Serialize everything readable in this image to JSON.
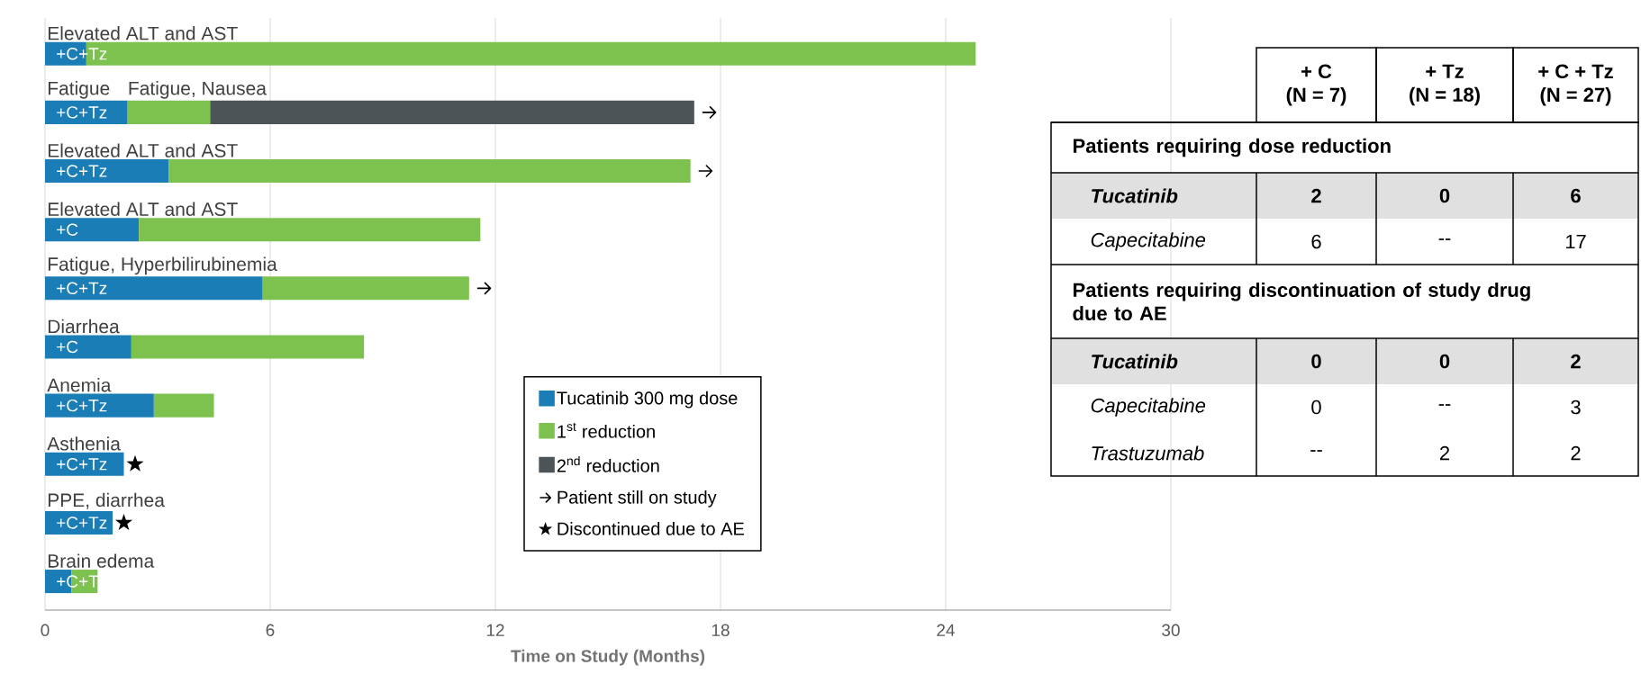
{
  "chart_data": [
    {
      "type": "bar",
      "orientation": "horizontal",
      "stacked": true,
      "categories": [
        "Elevated ALT and AST",
        "Fatigue",
        "Elevated ALT and AST",
        "Elevated ALT and AST",
        "Fatigue, Hyperbilirubinemia",
        "Diarrhea",
        "Anemia",
        "Asthenia",
        "PPE, diarrhea",
        "Brain edema"
      ],
      "series": [
        {
          "name": "Tucatinib 300 mg dose",
          "color": "#1a7db6",
          "values": [
            1.1,
            2.2,
            3.3,
            2.5,
            5.8,
            2.3,
            2.9,
            2.1,
            1.8,
            0.7
          ],
          "value_labels": [
            "+C+Tz",
            "+C+Tz",
            "+C+Tz",
            "+C",
            "+C+Tz",
            "+C",
            "+C+Tz",
            "+C+Tz",
            "+C+Tz",
            "+C+T"
          ]
        },
        {
          "name": "1$^{st}$ reduction",
          "color": "#7dc24f",
          "values": [
            23.7,
            2.2,
            13.9,
            9.1,
            5.5,
            6.2,
            1.6,
            null,
            null,
            0.7
          ],
          "value_labels": [
            null,
            "Fatigue, Nausea",
            null,
            null,
            null,
            null,
            null,
            null,
            null,
            null
          ]
        },
        {
          "name": "2$^{nd}$ reduction",
          "color": "#4d5457",
          "values": [
            null,
            12.9,
            null,
            null,
            null,
            null,
            null,
            null,
            null,
            null
          ]
        },
        {
          "name": "Patient still on study",
          "type": "scatter",
          "color": "#000000",
          "values": [
            null,
            17.7,
            17.6,
            null,
            11.7,
            null,
            null,
            null,
            null,
            null
          ]
        },
        {
          "name": "Discontinued due to AE",
          "type": "scatter",
          "marker": "star",
          "color": "#000000",
          "values": [
            null,
            null,
            null,
            null,
            null,
            null,
            null,
            2.4,
            2.1,
            null
          ]
        }
      ],
      "xlabel": "Time on Study (Months)",
      "xlim": [
        0,
        30
      ],
      "xticks": [
        0,
        6,
        12,
        18,
        24,
        30
      ],
      "grid": "x",
      "legend": "bottom",
      "tick_labels": "x"
    },
    {
      "type": "other",
      "categories": [
        "+ C",
        "+ Tz",
        "+ C + Tz"
      ],
      "y_categories": [
        null,
        "Patients requiring dose reduction",
        "Tucatinib",
        "Capecitabine",
        "Patients requiring discontinuation of study drug due to AE",
        "Tucatinib",
        "Capecitabine",
        "Trastuzumab"
      ],
      "cell_labels": [
        [
          "(N = 7)",
          "(N = 18)",
          "(N = 27)"
        ],
        [
          null,
          null,
          null
        ],
        [
          "2",
          "0",
          "6"
        ],
        [
          "6",
          "--",
          "17"
        ],
        [
          null,
          null,
          null
        ],
        [
          "0",
          "0",
          "2"
        ],
        [
          "0",
          "--",
          "3"
        ],
        [
          "--",
          "2",
          "2"
        ]
      ]
    }
  ]
}
